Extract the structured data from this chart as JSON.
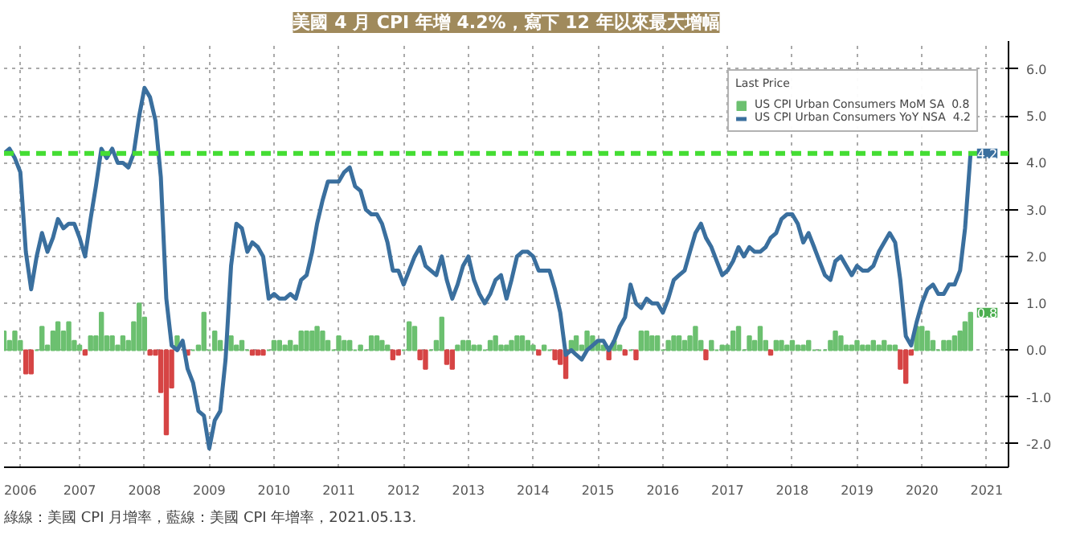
{
  "chart_data": {
    "type": "bar",
    "title": "美國 4 月 CPI 年增 4.2%，寫下 12 年以來最大增幅",
    "x": [
      "2006-05",
      "2006-06",
      "2006-07",
      "2006-08",
      "2006-09",
      "2006-10",
      "2006-11",
      "2006-12",
      "2007-01",
      "2007-02",
      "2007-03",
      "2007-04",
      "2007-05",
      "2007-06",
      "2007-07",
      "2007-08",
      "2007-09",
      "2007-10",
      "2007-11",
      "2007-12",
      "2008-01",
      "2008-02",
      "2008-03",
      "2008-04",
      "2008-05",
      "2008-06",
      "2008-07",
      "2008-08",
      "2008-09",
      "2008-10",
      "2008-11",
      "2008-12",
      "2009-01",
      "2009-02",
      "2009-03",
      "2009-04",
      "2009-05",
      "2009-06",
      "2009-07",
      "2009-08",
      "2009-09",
      "2009-10",
      "2009-11",
      "2009-12",
      "2010-01",
      "2010-02",
      "2010-03",
      "2010-04",
      "2010-05",
      "2010-06",
      "2010-07",
      "2010-08",
      "2010-09",
      "2010-10",
      "2010-11",
      "2010-12",
      "2011-01",
      "2011-02",
      "2011-03",
      "2011-04",
      "2011-05",
      "2011-06",
      "2011-07",
      "2011-08",
      "2011-09",
      "2011-10",
      "2011-11",
      "2011-12",
      "2012-01",
      "2012-02",
      "2012-03",
      "2012-04",
      "2012-05",
      "2012-06",
      "2012-07",
      "2012-08",
      "2012-09",
      "2012-10",
      "2012-11",
      "2012-12",
      "2013-01",
      "2013-02",
      "2013-03",
      "2013-04",
      "2013-05",
      "2013-06",
      "2013-07",
      "2013-08",
      "2013-09",
      "2013-10",
      "2013-11",
      "2013-12",
      "2014-01",
      "2014-02",
      "2014-03",
      "2014-04",
      "2014-05",
      "2014-06",
      "2014-07",
      "2014-08",
      "2014-09",
      "2014-10",
      "2014-11",
      "2014-12",
      "2015-01",
      "2015-02",
      "2015-03",
      "2015-04",
      "2015-05",
      "2015-06",
      "2015-07",
      "2015-08",
      "2015-09",
      "2015-10",
      "2015-11",
      "2015-12",
      "2016-01",
      "2016-02",
      "2016-03",
      "2016-04",
      "2016-05",
      "2016-06",
      "2016-07",
      "2016-08",
      "2016-09",
      "2016-10",
      "2016-11",
      "2016-12",
      "2017-01",
      "2017-02",
      "2017-03",
      "2017-04",
      "2017-05",
      "2017-06",
      "2017-07",
      "2017-08",
      "2017-09",
      "2017-10",
      "2017-11",
      "2017-12",
      "2018-01",
      "2018-02",
      "2018-03",
      "2018-04",
      "2018-05",
      "2018-06",
      "2018-07",
      "2018-08",
      "2018-09",
      "2018-10",
      "2018-11",
      "2018-12",
      "2019-01",
      "2019-02",
      "2019-03",
      "2019-04",
      "2019-05",
      "2019-06",
      "2019-07",
      "2019-08",
      "2019-09",
      "2019-10",
      "2019-11",
      "2019-12",
      "2020-01",
      "2020-02",
      "2020-03",
      "2020-04",
      "2020-05",
      "2020-06",
      "2020-07",
      "2020-08",
      "2020-09",
      "2020-10",
      "2020-11",
      "2020-12",
      "2021-01",
      "2021-02",
      "2021-03",
      "2021-04"
    ],
    "series": [
      {
        "name": "US CPI Urban Consumers MoM SA  0.8",
        "color": "#6cc070",
        "values": [
          0.4,
          0.2,
          0.4,
          0.2,
          -0.5,
          -0.5,
          0.0,
          0.5,
          0.1,
          0.4,
          0.6,
          0.4,
          0.6,
          0.2,
          0.1,
          -0.1,
          0.3,
          0.3,
          0.8,
          0.3,
          0.3,
          0.1,
          0.3,
          0.2,
          0.6,
          1.0,
          0.7,
          -0.1,
          -0.1,
          -0.9,
          -1.8,
          -0.8,
          0.3,
          null,
          -0.1,
          0.0,
          0.1,
          0.8,
          0.0,
          0.4,
          0.2,
          null,
          0.3,
          0.1,
          0.2,
          0.0,
          -0.1,
          -0.1,
          -0.1,
          0.0,
          0.2,
          0.2,
          0.1,
          0.2,
          0.1,
          0.4,
          0.4,
          0.4,
          0.5,
          0.4,
          0.2,
          0.0,
          0.3,
          0.2,
          0.2,
          0.0,
          0.1,
          0.0,
          0.3,
          0.3,
          0.2,
          0.1,
          -0.2,
          -0.1,
          0.0,
          0.6,
          0.5,
          -0.2,
          -0.4,
          0.0,
          0.2,
          0.7,
          -0.3,
          -0.4,
          0.1,
          0.2,
          0.2,
          0.1,
          0.1,
          0.0,
          0.2,
          0.3,
          0.1,
          0.1,
          0.2,
          0.3,
          0.3,
          0.2,
          0.1,
          -0.1,
          0.1,
          0.0,
          -0.2,
          -0.3,
          -0.6,
          0.2,
          0.3,
          0.1,
          0.4,
          0.3,
          0.2,
          0.1,
          -0.2,
          0.2,
          0.1,
          -0.1,
          0.0,
          -0.2,
          0.4,
          0.4,
          0.3,
          0.3,
          0.0,
          0.2,
          0.3,
          0.3,
          0.2,
          0.3,
          0.5,
          0.2,
          -0.2,
          0.2,
          0.0,
          0.1,
          0.1,
          0.4,
          0.5,
          0.0,
          0.3,
          0.2,
          0.5,
          0.2,
          -0.1,
          0.2,
          0.2,
          0.1,
          0.2,
          0.1,
          0.1,
          0.2,
          0.0,
          0.0,
          0.0,
          0.2,
          0.4,
          0.3,
          0.1,
          0.1,
          0.2,
          0.1,
          0.1,
          0.2,
          0.1,
          0.2,
          0.1,
          0.1,
          -0.4,
          -0.7,
          -0.1,
          0.5,
          0.5,
          0.4,
          0.2,
          0.0,
          0.2,
          0.2,
          0.3,
          0.4,
          0.6,
          0.8
        ],
        "colors": [
          "#6cc070",
          "#6cc070",
          "#6cc070",
          "#6cc070",
          "#d64545",
          "#d64545",
          "#6cc070",
          "#6cc070",
          "#6cc070",
          "#6cc070",
          "#6cc070",
          "#6cc070",
          "#6cc070",
          "#6cc070",
          "#6cc070",
          "#d64545",
          "#6cc070",
          "#6cc070",
          "#6cc070",
          "#6cc070",
          "#6cc070",
          "#6cc070",
          "#6cc070",
          "#6cc070",
          "#6cc070",
          "#6cc070",
          "#6cc070",
          "#d64545",
          "#d64545",
          "#d64545",
          "#d64545",
          "#d64545",
          "#6cc070",
          "#6cc070",
          "#d64545",
          "#6cc070",
          "#6cc070",
          "#6cc070",
          "#6cc070",
          "#6cc070",
          "#6cc070",
          "#6cc070",
          "#6cc070",
          "#6cc070",
          "#6cc070",
          "#6cc070",
          "#d64545",
          "#d64545",
          "#d64545",
          "#6cc070",
          "#6cc070",
          "#6cc070",
          "#6cc070",
          "#6cc070",
          "#6cc070",
          "#6cc070",
          "#6cc070",
          "#6cc070",
          "#6cc070",
          "#6cc070",
          "#6cc070",
          "#6cc070",
          "#6cc070",
          "#6cc070",
          "#6cc070",
          "#6cc070",
          "#6cc070",
          "#6cc070",
          "#6cc070",
          "#6cc070",
          "#6cc070",
          "#6cc070",
          "#d64545",
          "#d64545",
          "#6cc070",
          "#6cc070",
          "#6cc070",
          "#d64545",
          "#d64545",
          "#6cc070",
          "#6cc070",
          "#6cc070",
          "#d64545",
          "#d64545",
          "#6cc070",
          "#6cc070",
          "#6cc070",
          "#6cc070",
          "#6cc070",
          "#6cc070",
          "#6cc070",
          "#6cc070",
          "#6cc070",
          "#6cc070",
          "#6cc070",
          "#6cc070",
          "#6cc070",
          "#6cc070",
          "#6cc070",
          "#d64545",
          "#6cc070",
          "#6cc070",
          "#d64545",
          "#d64545",
          "#d64545",
          "#6cc070",
          "#6cc070",
          "#6cc070",
          "#6cc070",
          "#6cc070",
          "#6cc070",
          "#6cc070",
          "#d64545",
          "#6cc070",
          "#6cc070",
          "#d64545",
          "#6cc070",
          "#d64545",
          "#6cc070",
          "#6cc070",
          "#6cc070",
          "#6cc070",
          "#6cc070",
          "#6cc070",
          "#6cc070",
          "#6cc070",
          "#6cc070",
          "#6cc070",
          "#6cc070",
          "#6cc070",
          "#d64545",
          "#6cc070",
          "#6cc070",
          "#6cc070",
          "#6cc070",
          "#6cc070",
          "#6cc070",
          "#6cc070",
          "#6cc070",
          "#6cc070",
          "#6cc070",
          "#6cc070",
          "#d64545",
          "#6cc070",
          "#6cc070",
          "#6cc070",
          "#6cc070",
          "#6cc070",
          "#6cc070",
          "#6cc070",
          "#6cc070",
          "#6cc070",
          "#6cc070",
          "#6cc070",
          "#6cc070",
          "#6cc070",
          "#6cc070",
          "#6cc070",
          "#6cc070",
          "#6cc070",
          "#6cc070",
          "#6cc070",
          "#6cc070",
          "#6cc070",
          "#6cc070",
          "#6cc070",
          "#d64545",
          "#d64545",
          "#d64545",
          "#6cc070",
          "#6cc070",
          "#6cc070",
          "#6cc070",
          "#6cc070",
          "#6cc070",
          "#6cc070",
          "#6cc070",
          "#6cc070",
          "#6cc070",
          "#6cc070"
        ]
      },
      {
        "name": "US CPI Urban Consumers YoY NSA  4.2",
        "type": "line",
        "color": "#3a6f9e",
        "values": [
          4.2,
          4.3,
          4.1,
          3.8,
          2.1,
          1.3,
          2.0,
          2.5,
          2.1,
          2.4,
          2.8,
          2.6,
          2.7,
          2.7,
          2.4,
          2.0,
          2.8,
          3.5,
          4.3,
          4.1,
          4.3,
          4.0,
          4.0,
          3.9,
          4.2,
          5.0,
          5.6,
          5.4,
          4.9,
          3.7,
          1.1,
          0.1,
          0.0,
          0.2,
          -0.4,
          -0.7,
          -1.3,
          -1.4,
          -2.1,
          -1.5,
          -1.3,
          -0.2,
          1.8,
          2.7,
          2.6,
          2.1,
          2.3,
          2.2,
          2.0,
          1.1,
          1.2,
          1.1,
          1.1,
          1.2,
          1.1,
          1.5,
          1.6,
          2.1,
          2.7,
          3.2,
          3.6,
          3.6,
          3.6,
          3.8,
          3.9,
          3.5,
          3.4,
          3.0,
          2.9,
          2.9,
          2.7,
          2.3,
          1.7,
          1.7,
          1.4,
          1.7,
          2.0,
          2.2,
          1.8,
          1.7,
          1.6,
          2.0,
          1.5,
          1.1,
          1.4,
          1.8,
          2.0,
          1.5,
          1.2,
          1.0,
          1.2,
          1.5,
          1.6,
          1.1,
          1.5,
          2.0,
          2.1,
          2.1,
          2.0,
          1.7,
          1.7,
          1.7,
          1.3,
          0.8,
          -0.1,
          0.0,
          -0.1,
          -0.2,
          0.0,
          0.1,
          0.2,
          0.2,
          0.0,
          0.2,
          0.5,
          0.7,
          1.4,
          1.0,
          0.9,
          1.1,
          1.0,
          1.0,
          0.8,
          1.1,
          1.5,
          1.6,
          1.7,
          2.1,
          2.5,
          2.7,
          2.4,
          2.2,
          1.9,
          1.6,
          1.7,
          1.9,
          2.2,
          2.0,
          2.2,
          2.1,
          2.1,
          2.2,
          2.4,
          2.5,
          2.8,
          2.9,
          2.9,
          2.7,
          2.3,
          2.5,
          2.2,
          1.9,
          1.6,
          1.5,
          1.9,
          2.0,
          1.8,
          1.6,
          1.8,
          1.7,
          1.7,
          1.8,
          2.1,
          2.3,
          2.5,
          2.3,
          1.5,
          0.3,
          0.1,
          0.6,
          1.0,
          1.3,
          1.4,
          1.2,
          1.2,
          1.4,
          1.4,
          1.7,
          2.6,
          4.2
        ]
      }
    ],
    "legend_title": "Last Price",
    "legend": "top right",
    "xlim": [
      "2006-05",
      "2021-11"
    ],
    "xticks": [
      {
        "value": "2006-08",
        "label": "2006"
      },
      {
        "value": "2007-07",
        "label": "2007"
      },
      {
        "value": "2008-07",
        "label": "2008"
      },
      {
        "value": "2009-07",
        "label": "2009"
      },
      {
        "value": "2010-07",
        "label": "2010"
      },
      {
        "value": "2011-07",
        "label": "2011"
      },
      {
        "value": "2012-07",
        "label": "2012"
      },
      {
        "value": "2013-07",
        "label": "2013"
      },
      {
        "value": "2014-07",
        "label": "2014"
      },
      {
        "value": "2015-07",
        "label": "2015"
      },
      {
        "value": "2016-07",
        "label": "2016"
      },
      {
        "value": "2017-07",
        "label": "2017"
      },
      {
        "value": "2018-07",
        "label": "2018"
      },
      {
        "value": "2019-07",
        "label": "2019"
      },
      {
        "value": "2020-07",
        "label": "2020"
      },
      {
        "value": "2021-07",
        "label": "2021"
      }
    ],
    "ylim": [
      -2.5,
      6.6
    ],
    "yticks": [
      {
        "value": -2,
        "label": "-2.0"
      },
      {
        "value": -1,
        "label": "-1.0"
      },
      {
        "value": 0,
        "label": "0.0"
      },
      {
        "value": 1,
        "label": "1.0"
      },
      {
        "value": 2,
        "label": "2.0"
      },
      {
        "value": 3,
        "label": "3.0"
      },
      {
        "value": 4,
        "label": "4.0"
      },
      {
        "value": 5,
        "label": "5.0"
      },
      {
        "value": 6,
        "label": "6.0"
      }
    ],
    "grid": true,
    "ref_lines": [
      {
        "axis": "y",
        "value": 4.2,
        "color": "#44dd33",
        "line_style": "dashed"
      }
    ],
    "annotations": [
      {
        "text": "4.2",
        "x": "2021-04",
        "y": 4.2
      },
      {
        "text": "0.8",
        "x": "2021-04",
        "y": 0.8
      },
      "綠線：美國 CPI 月增率，藍線：美國 CPI 年增率，2021.05.13."
    ]
  }
}
